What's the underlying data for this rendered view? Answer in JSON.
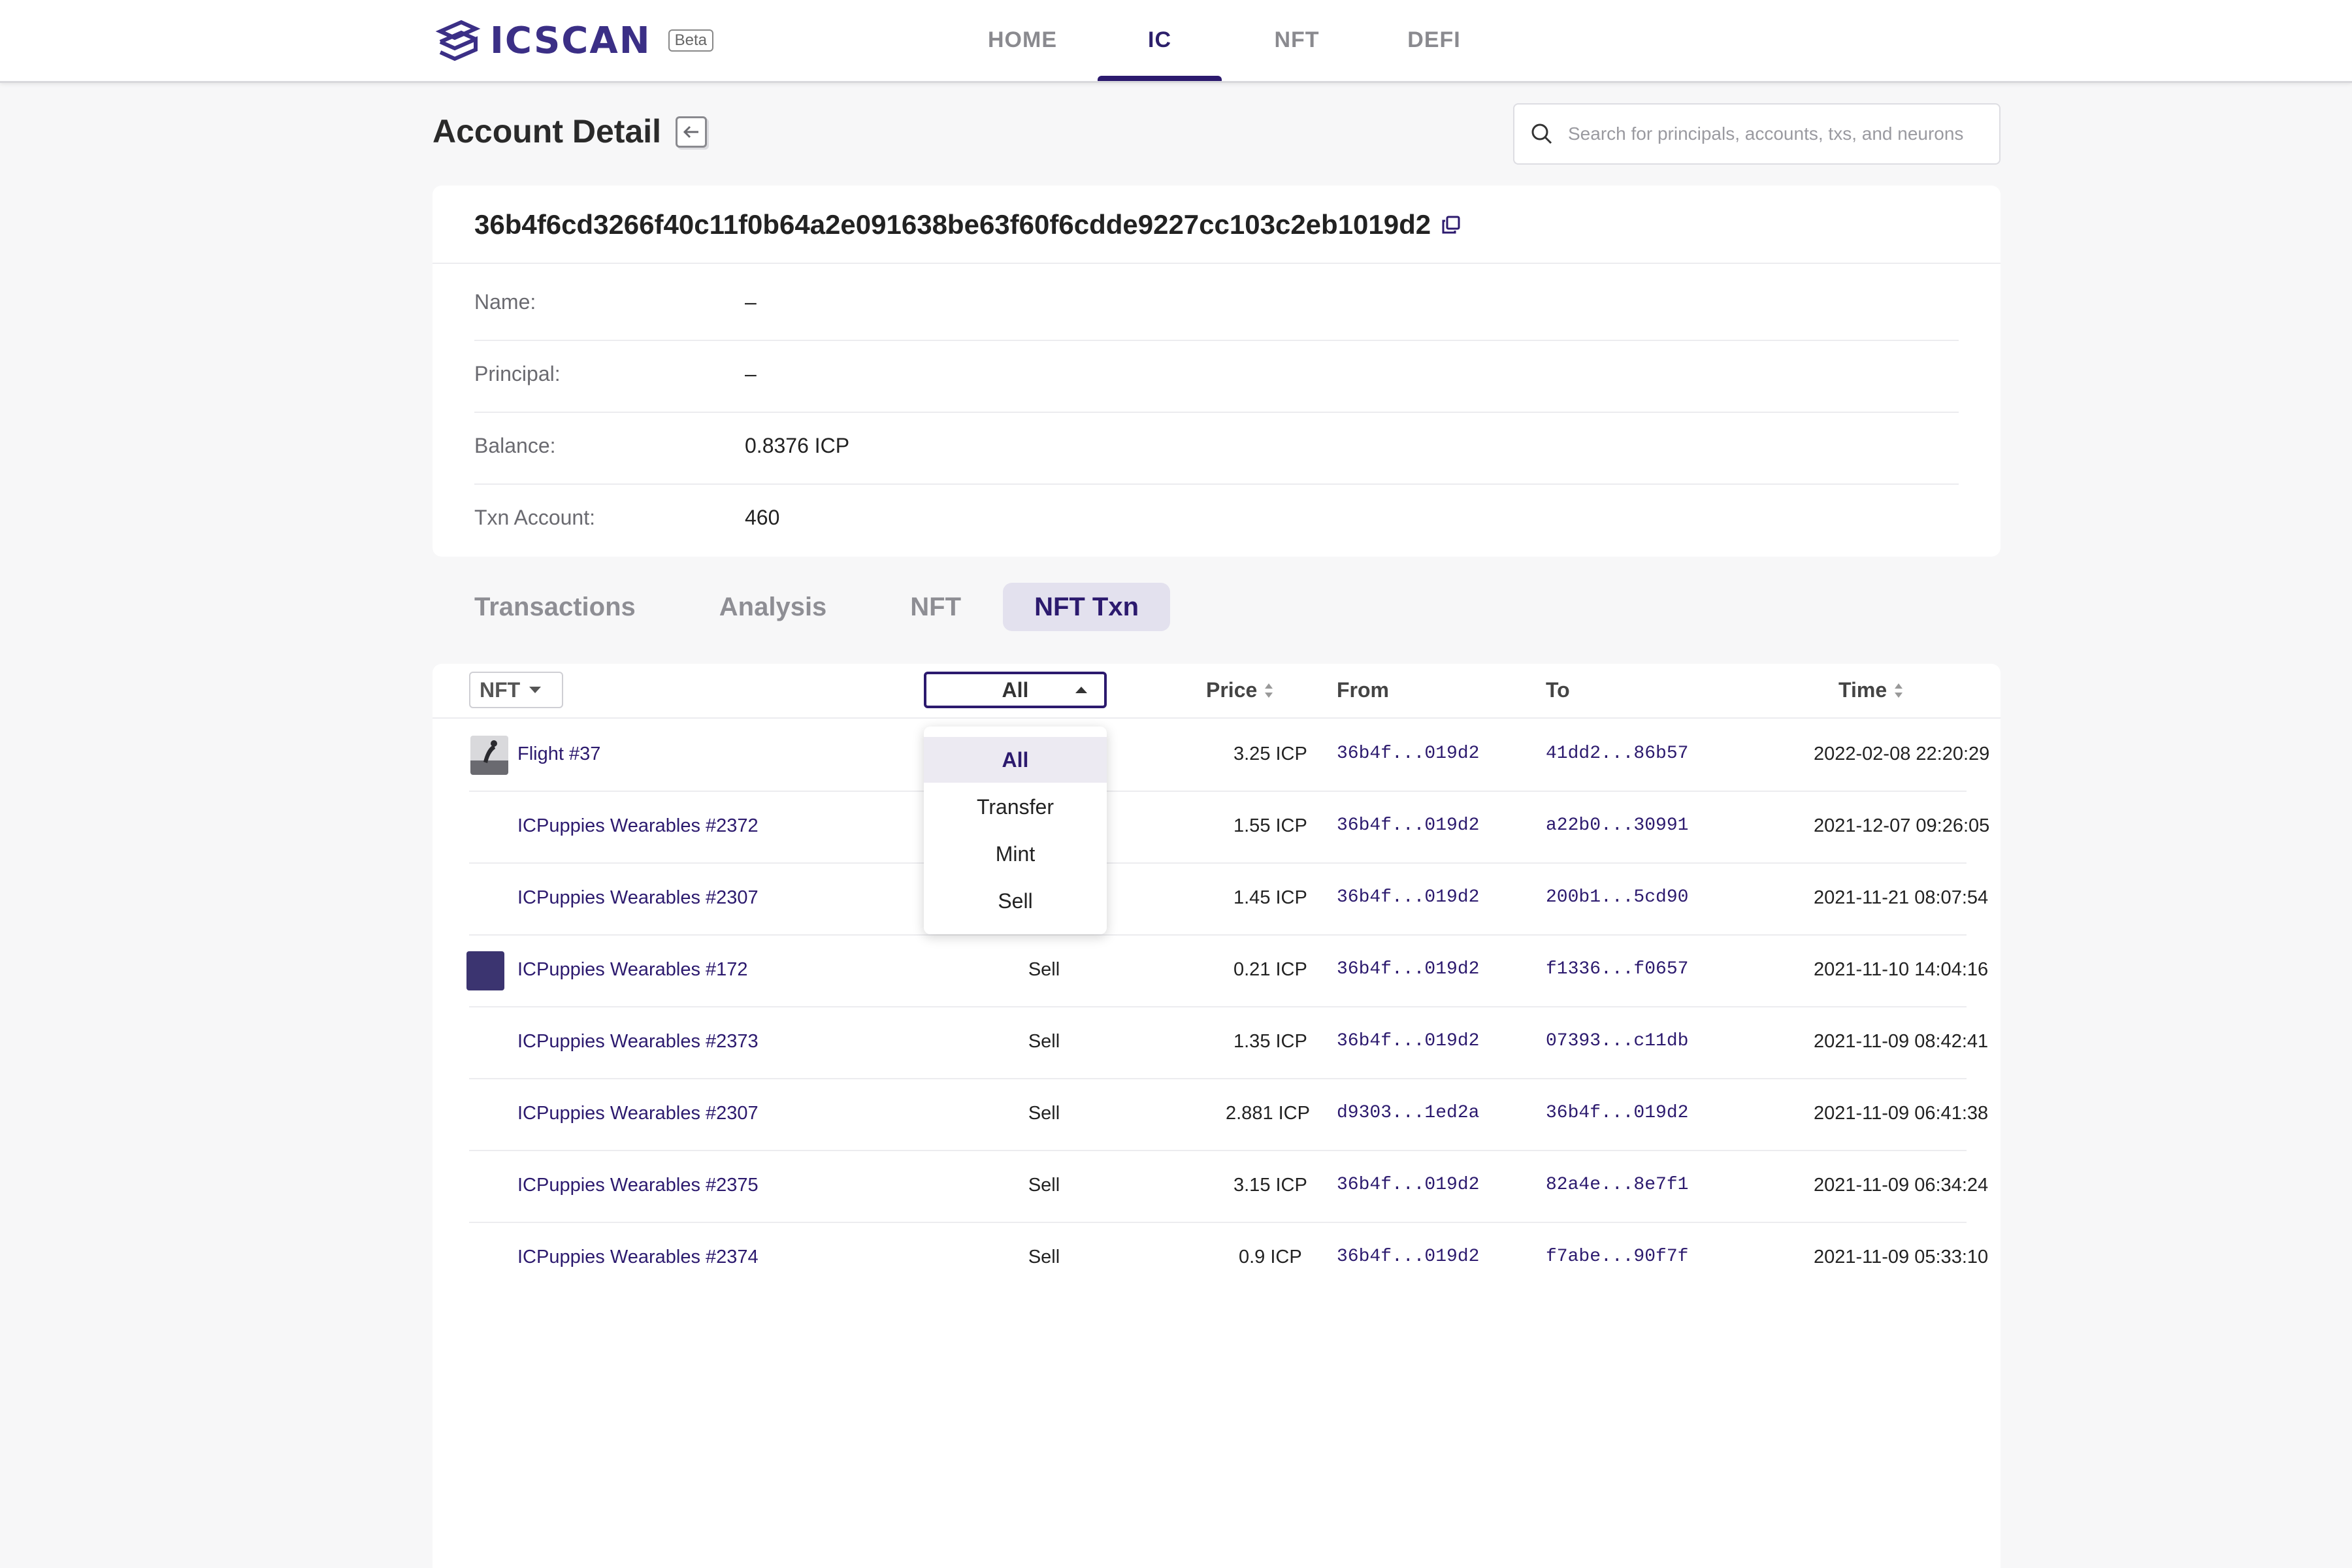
{
  "header": {
    "logo_text": "ICSCAN",
    "beta_label": "Beta",
    "nav": [
      {
        "label": "HOME",
        "active": false
      },
      {
        "label": "IC",
        "active": true
      },
      {
        "label": "NFT",
        "active": false
      },
      {
        "label": "DEFI",
        "active": false
      }
    ]
  },
  "page": {
    "title": "Account Detail",
    "search_placeholder": "Search for principals, accounts, txs, and neurons"
  },
  "account": {
    "id": "36b4f6cd3266f40c11f0b64a2e091638be63f60f6cdde9227cc103c2eb1019d2",
    "fields": [
      {
        "label": "Name:",
        "value": "–"
      },
      {
        "label": "Principal:",
        "value": "–"
      },
      {
        "label": "Balance:",
        "value": "0.8376 ICP"
      },
      {
        "label": "Txn Account:",
        "value": "460"
      }
    ]
  },
  "tabs": [
    {
      "label": "Transactions",
      "active": false
    },
    {
      "label": "Analysis",
      "active": false
    },
    {
      "label": "NFT",
      "active": false
    },
    {
      "label": "NFT Txn",
      "active": true
    }
  ],
  "table": {
    "nft_filter": "NFT",
    "type_filter": "All",
    "columns": {
      "price": "Price",
      "from": "From",
      "to": "To",
      "time": "Time"
    },
    "rows": [
      {
        "name": "Flight #37",
        "type": "",
        "price": "3.25 ICP",
        "from": "36b4f...019d2",
        "to": "41dd2...86b57",
        "time": "2022-02-08 22:20:29",
        "thumb": "photo"
      },
      {
        "name": "ICPuppies Wearables #2372",
        "type": "",
        "price": "1.55 ICP",
        "from": "36b4f...019d2",
        "to": "a22b0...30991",
        "time": "2021-12-07 09:26:05",
        "thumb": ""
      },
      {
        "name": "ICPuppies Wearables #2307",
        "type": "",
        "price": "1.45 ICP",
        "from": "36b4f...019d2",
        "to": "200b1...5cd90",
        "time": "2021-11-21 08:07:54",
        "thumb": ""
      },
      {
        "name": "ICPuppies Wearables #172",
        "type": "Sell",
        "price": "0.21 ICP",
        "from": "36b4f...019d2",
        "to": "f1336...f0657",
        "time": "2021-11-10 14:04:16",
        "thumb": "solid"
      },
      {
        "name": "ICPuppies Wearables #2373",
        "type": "Sell",
        "price": "1.35 ICP",
        "from": "36b4f...019d2",
        "to": "07393...c11db",
        "time": "2021-11-09 08:42:41",
        "thumb": ""
      },
      {
        "name": "ICPuppies Wearables #2307",
        "type": "Sell",
        "price": "2.881 ICP",
        "from": "d9303...1ed2a",
        "to": "36b4f...019d2",
        "time": "2021-11-09 06:41:38",
        "thumb": ""
      },
      {
        "name": "ICPuppies Wearables #2375",
        "type": "Sell",
        "price": "3.15 ICP",
        "from": "36b4f...019d2",
        "to": "82a4e...8e7f1",
        "time": "2021-11-09 06:34:24",
        "thumb": ""
      },
      {
        "name": "ICPuppies Wearables #2374",
        "type": "Sell",
        "price": "0.9 ICP",
        "from": "36b4f...019d2",
        "to": "f7abe...90f7f",
        "time": "2021-11-09 05:33:10",
        "thumb": ""
      }
    ]
  },
  "dropdown": {
    "options": [
      {
        "label": "All",
        "selected": true
      },
      {
        "label": "Transfer",
        "selected": false
      },
      {
        "label": "Mint",
        "selected": false
      },
      {
        "label": "Sell",
        "selected": false
      }
    ]
  },
  "colors": {
    "brand": "#2c1a6e",
    "accent_bg": "#e3e1ee",
    "thumb_solid": "#3b3470"
  }
}
